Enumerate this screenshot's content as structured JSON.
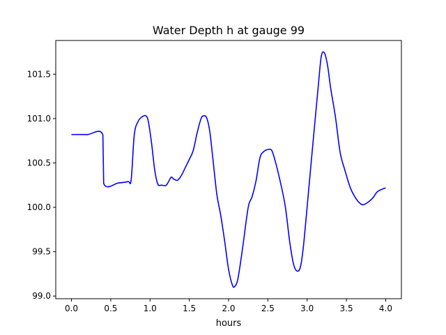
{
  "chart_data": {
    "type": "line",
    "title": "Water Depth h at gauge 99",
    "xlabel": "hours",
    "ylabel": "",
    "xlim": [
      -0.2,
      4.2
    ],
    "ylim": [
      98.97,
      101.88
    ],
    "xticks": [
      0.0,
      0.5,
      1.0,
      1.5,
      2.0,
      2.5,
      3.0,
      3.5,
      4.0
    ],
    "xtick_labels": [
      "0.0",
      "0.5",
      "1.0",
      "1.5",
      "2.0",
      "2.5",
      "3.0",
      "3.5",
      "4.0"
    ],
    "yticks": [
      99.0,
      99.5,
      100.0,
      100.5,
      101.0,
      101.5
    ],
    "ytick_labels": [
      "99.0",
      "99.5",
      "100.0",
      "100.5",
      "101.0",
      "101.5"
    ],
    "grid": false,
    "legend": "none",
    "series": [
      {
        "color": "#0000ff",
        "points": [
          [
            0.0,
            100.82
          ],
          [
            0.2,
            100.82
          ],
          [
            0.4,
            100.815
          ],
          [
            0.41,
            100.27
          ],
          [
            0.6,
            100.275
          ],
          [
            0.72,
            100.29
          ],
          [
            0.76,
            100.31
          ],
          [
            0.8,
            100.82
          ],
          [
            0.85,
            100.97
          ],
          [
            0.9,
            101.02
          ],
          [
            0.95,
            101.03
          ],
          [
            0.98,
            100.96
          ],
          [
            1.02,
            100.72
          ],
          [
            1.06,
            100.42
          ],
          [
            1.1,
            100.26
          ],
          [
            1.15,
            100.25
          ],
          [
            1.2,
            100.245
          ],
          [
            1.23,
            100.28
          ],
          [
            1.27,
            100.34
          ],
          [
            1.3,
            100.32
          ],
          [
            1.35,
            100.305
          ],
          [
            1.4,
            100.36
          ],
          [
            1.45,
            100.45
          ],
          [
            1.5,
            100.54
          ],
          [
            1.55,
            100.64
          ],
          [
            1.6,
            100.84
          ],
          [
            1.65,
            101.0
          ],
          [
            1.68,
            101.03
          ],
          [
            1.72,
            101.01
          ],
          [
            1.76,
            100.86
          ],
          [
            1.8,
            100.55
          ],
          [
            1.85,
            100.15
          ],
          [
            1.9,
            99.91
          ],
          [
            1.95,
            99.62
          ],
          [
            2.0,
            99.3
          ],
          [
            2.05,
            99.12
          ],
          [
            2.08,
            99.11
          ],
          [
            2.12,
            99.2
          ],
          [
            2.18,
            99.55
          ],
          [
            2.25,
            100.0
          ],
          [
            2.3,
            100.12
          ],
          [
            2.35,
            100.3
          ],
          [
            2.4,
            100.56
          ],
          [
            2.45,
            100.63
          ],
          [
            2.5,
            100.65
          ],
          [
            2.55,
            100.64
          ],
          [
            2.6,
            100.5
          ],
          [
            2.65,
            100.32
          ],
          [
            2.72,
            100.02
          ],
          [
            2.78,
            99.6
          ],
          [
            2.83,
            99.35
          ],
          [
            2.88,
            99.28
          ],
          [
            2.92,
            99.35
          ],
          [
            2.96,
            99.62
          ],
          [
            3.02,
            100.2
          ],
          [
            3.08,
            100.78
          ],
          [
            3.14,
            101.35
          ],
          [
            3.18,
            101.7
          ],
          [
            3.22,
            101.74
          ],
          [
            3.26,
            101.6
          ],
          [
            3.3,
            101.34
          ],
          [
            3.36,
            101.02
          ],
          [
            3.42,
            100.62
          ],
          [
            3.48,
            100.42
          ],
          [
            3.55,
            100.22
          ],
          [
            3.62,
            100.1
          ],
          [
            3.68,
            100.04
          ],
          [
            3.72,
            100.03
          ],
          [
            3.78,
            100.06
          ],
          [
            3.84,
            100.11
          ],
          [
            3.9,
            100.18
          ],
          [
            4.0,
            100.22
          ]
        ]
      }
    ]
  }
}
